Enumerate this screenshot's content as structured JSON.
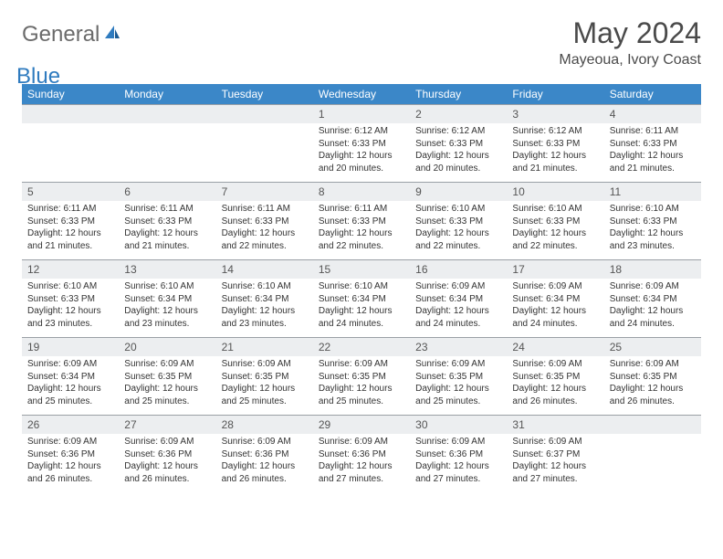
{
  "logo": {
    "text1": "General",
    "text2": "Blue"
  },
  "title": "May 2024",
  "location": "Mayeoua, Ivory Coast",
  "colors": {
    "header_bg": "#3b87c8",
    "header_text": "#ffffff",
    "date_bg": "#eceef0",
    "date_border": "#9aa0a6",
    "body_text": "#333333",
    "logo_gray": "#6b6b6b",
    "logo_blue": "#2f7bbf"
  },
  "day_names": [
    "Sunday",
    "Monday",
    "Tuesday",
    "Wednesday",
    "Thursday",
    "Friday",
    "Saturday"
  ],
  "weeks": [
    {
      "dates": [
        "",
        "",
        "",
        "1",
        "2",
        "3",
        "4"
      ],
      "info": [
        "",
        "",
        "",
        "Sunrise: 6:12 AM\nSunset: 6:33 PM\nDaylight: 12 hours and 20 minutes.",
        "Sunrise: 6:12 AM\nSunset: 6:33 PM\nDaylight: 12 hours and 20 minutes.",
        "Sunrise: 6:12 AM\nSunset: 6:33 PM\nDaylight: 12 hours and 21 minutes.",
        "Sunrise: 6:11 AM\nSunset: 6:33 PM\nDaylight: 12 hours and 21 minutes."
      ]
    },
    {
      "dates": [
        "5",
        "6",
        "7",
        "8",
        "9",
        "10",
        "11"
      ],
      "info": [
        "Sunrise: 6:11 AM\nSunset: 6:33 PM\nDaylight: 12 hours and 21 minutes.",
        "Sunrise: 6:11 AM\nSunset: 6:33 PM\nDaylight: 12 hours and 21 minutes.",
        "Sunrise: 6:11 AM\nSunset: 6:33 PM\nDaylight: 12 hours and 22 minutes.",
        "Sunrise: 6:11 AM\nSunset: 6:33 PM\nDaylight: 12 hours and 22 minutes.",
        "Sunrise: 6:10 AM\nSunset: 6:33 PM\nDaylight: 12 hours and 22 minutes.",
        "Sunrise: 6:10 AM\nSunset: 6:33 PM\nDaylight: 12 hours and 22 minutes.",
        "Sunrise: 6:10 AM\nSunset: 6:33 PM\nDaylight: 12 hours and 23 minutes."
      ]
    },
    {
      "dates": [
        "12",
        "13",
        "14",
        "15",
        "16",
        "17",
        "18"
      ],
      "info": [
        "Sunrise: 6:10 AM\nSunset: 6:33 PM\nDaylight: 12 hours and 23 minutes.",
        "Sunrise: 6:10 AM\nSunset: 6:34 PM\nDaylight: 12 hours and 23 minutes.",
        "Sunrise: 6:10 AM\nSunset: 6:34 PM\nDaylight: 12 hours and 23 minutes.",
        "Sunrise: 6:10 AM\nSunset: 6:34 PM\nDaylight: 12 hours and 24 minutes.",
        "Sunrise: 6:09 AM\nSunset: 6:34 PM\nDaylight: 12 hours and 24 minutes.",
        "Sunrise: 6:09 AM\nSunset: 6:34 PM\nDaylight: 12 hours and 24 minutes.",
        "Sunrise: 6:09 AM\nSunset: 6:34 PM\nDaylight: 12 hours and 24 minutes."
      ]
    },
    {
      "dates": [
        "19",
        "20",
        "21",
        "22",
        "23",
        "24",
        "25"
      ],
      "info": [
        "Sunrise: 6:09 AM\nSunset: 6:34 PM\nDaylight: 12 hours and 25 minutes.",
        "Sunrise: 6:09 AM\nSunset: 6:35 PM\nDaylight: 12 hours and 25 minutes.",
        "Sunrise: 6:09 AM\nSunset: 6:35 PM\nDaylight: 12 hours and 25 minutes.",
        "Sunrise: 6:09 AM\nSunset: 6:35 PM\nDaylight: 12 hours and 25 minutes.",
        "Sunrise: 6:09 AM\nSunset: 6:35 PM\nDaylight: 12 hours and 25 minutes.",
        "Sunrise: 6:09 AM\nSunset: 6:35 PM\nDaylight: 12 hours and 26 minutes.",
        "Sunrise: 6:09 AM\nSunset: 6:35 PM\nDaylight: 12 hours and 26 minutes."
      ]
    },
    {
      "dates": [
        "26",
        "27",
        "28",
        "29",
        "30",
        "31",
        ""
      ],
      "info": [
        "Sunrise: 6:09 AM\nSunset: 6:36 PM\nDaylight: 12 hours and 26 minutes.",
        "Sunrise: 6:09 AM\nSunset: 6:36 PM\nDaylight: 12 hours and 26 minutes.",
        "Sunrise: 6:09 AM\nSunset: 6:36 PM\nDaylight: 12 hours and 26 minutes.",
        "Sunrise: 6:09 AM\nSunset: 6:36 PM\nDaylight: 12 hours and 27 minutes.",
        "Sunrise: 6:09 AM\nSunset: 6:36 PM\nDaylight: 12 hours and 27 minutes.",
        "Sunrise: 6:09 AM\nSunset: 6:37 PM\nDaylight: 12 hours and 27 minutes.",
        ""
      ]
    }
  ]
}
